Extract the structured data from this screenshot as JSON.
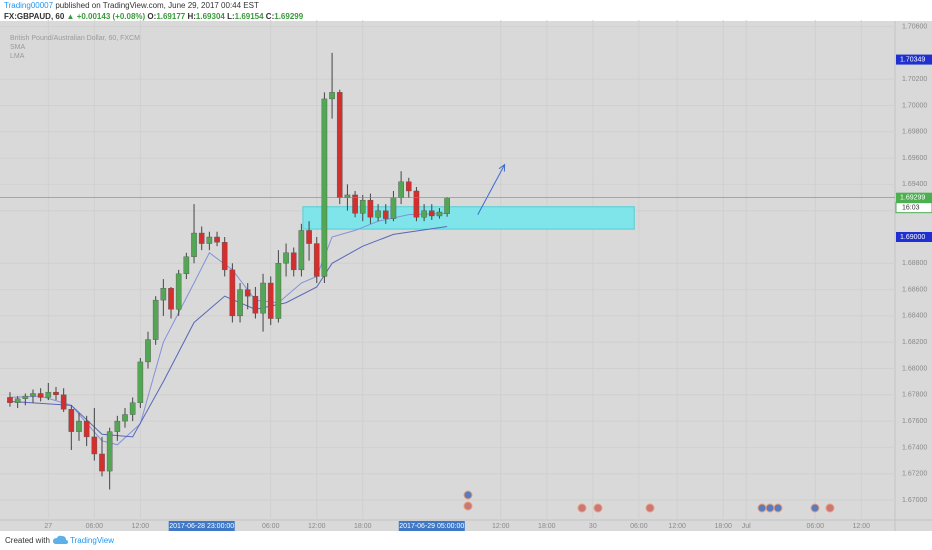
{
  "header": {
    "author": "Trading00007",
    "published": "published on TradingView.com, June 29, 2017 00:44 EST",
    "symbol": "FX:GBPAUD, 60",
    "change": "▲ +0.00143 (+0.08%)",
    "ohlc": [
      {
        "label": "O:",
        "value": "1.69177"
      },
      {
        "label": "H:",
        "value": "1.69304"
      },
      {
        "label": "L:",
        "value": "1.69154"
      },
      {
        "label": "C:",
        "value": "1.69299"
      }
    ]
  },
  "footer": {
    "created": "Created with",
    "brand": "TradingView"
  },
  "chart_data": {
    "type": "candlestick",
    "legend_title": "British Pound/Australian Dollar, 60, FXCM",
    "up_color": "#53a653",
    "down_color": "#d32f2f",
    "grid": true,
    "xlim": [
      -1.3,
      115.4
    ],
    "ylim": [
      1.66848,
      1.7065
    ],
    "x": [
      0,
      1,
      2,
      3,
      4,
      5,
      6,
      7,
      8,
      9,
      10,
      11,
      12,
      13,
      14,
      15,
      16,
      17,
      18,
      19,
      20,
      21,
      22,
      23,
      24,
      25,
      26,
      27,
      28,
      29,
      30,
      31,
      32,
      33,
      34,
      35,
      36,
      37,
      38,
      39,
      40,
      41,
      42,
      43,
      44,
      45,
      46,
      47,
      48,
      49,
      50,
      51,
      52,
      53,
      54,
      55,
      56,
      57
    ],
    "open": [
      1.6778,
      1.6774,
      1.6777,
      1.6779,
      1.6781,
      1.6778,
      1.6782,
      1.678,
      1.6769,
      1.6752,
      1.676,
      1.6748,
      1.6735,
      1.6722,
      1.6752,
      1.676,
      1.6765,
      1.6774,
      1.6805,
      1.6822,
      1.6852,
      1.6861,
      1.6845,
      1.6872,
      1.6885,
      1.6903,
      1.6895,
      1.69,
      1.6896,
      1.6875,
      1.684,
      1.686,
      1.6855,
      1.6842,
      1.6865,
      1.6838,
      1.688,
      1.6888,
      1.6875,
      1.6905,
      1.6895,
      1.687,
      1.7005,
      1.701,
      1.693,
      1.6932,
      1.6918,
      1.6928,
      1.6915,
      1.692,
      1.6914,
      1.693,
      1.6942,
      1.6935,
      1.6915,
      1.692,
      1.6916,
      1.69177
    ],
    "high": [
      1.6782,
      1.6779,
      1.6781,
      1.6784,
      1.6785,
      1.6789,
      1.6786,
      1.6785,
      1.6772,
      1.6766,
      1.6764,
      1.677,
      1.6748,
      1.6755,
      1.6764,
      1.677,
      1.6778,
      1.6808,
      1.6828,
      1.6855,
      1.6868,
      1.6862,
      1.6875,
      1.6888,
      1.6925,
      1.6908,
      1.6904,
      1.6904,
      1.69,
      1.688,
      1.6865,
      1.6865,
      1.6862,
      1.6872,
      1.687,
      1.689,
      1.6895,
      1.6892,
      1.691,
      1.6912,
      1.69,
      1.701,
      1.704,
      1.7012,
      1.694,
      1.6935,
      1.6932,
      1.6933,
      1.6925,
      1.6925,
      1.6935,
      1.695,
      1.6945,
      1.6938,
      1.6925,
      1.6925,
      1.6922,
      1.69304
    ],
    "low": [
      1.6771,
      1.677,
      1.6772,
      1.6774,
      1.6775,
      1.6776,
      1.6776,
      1.6767,
      1.6738,
      1.6745,
      1.6741,
      1.673,
      1.6718,
      1.6708,
      1.6745,
      1.6755,
      1.676,
      1.677,
      1.68,
      1.6818,
      1.684,
      1.6838,
      1.684,
      1.6868,
      1.688,
      1.689,
      1.689,
      1.6893,
      1.687,
      1.6835,
      1.6835,
      1.6845,
      1.6838,
      1.6828,
      1.6833,
      1.6835,
      1.687,
      1.687,
      1.687,
      1.6882,
      1.6865,
      1.6865,
      1.699,
      1.6925,
      1.692,
      1.6915,
      1.6912,
      1.691,
      1.6912,
      1.691,
      1.6912,
      1.6925,
      1.693,
      1.6912,
      1.6912,
      1.6913,
      1.6914,
      1.69154
    ],
    "close": [
      1.6774,
      1.6777,
      1.6779,
      1.6781,
      1.6778,
      1.6782,
      1.678,
      1.6769,
      1.6752,
      1.676,
      1.6748,
      1.6735,
      1.6722,
      1.6752,
      1.676,
      1.6765,
      1.6774,
      1.6805,
      1.6822,
      1.6852,
      1.6861,
      1.6845,
      1.6872,
      1.6885,
      1.6903,
      1.6895,
      1.69,
      1.6896,
      1.6875,
      1.684,
      1.686,
      1.6855,
      1.6842,
      1.6865,
      1.6838,
      1.688,
      1.6888,
      1.6875,
      1.6905,
      1.6895,
      1.687,
      1.7005,
      1.701,
      1.693,
      1.6932,
      1.6918,
      1.6928,
      1.6915,
      1.692,
      1.6914,
      1.693,
      1.6942,
      1.6935,
      1.6915,
      1.692,
      1.6916,
      1.6919,
      1.69299
    ],
    "series": [
      {
        "name": "SMA",
        "color": "#8391d8",
        "x": [
          0,
          4,
          8,
          12,
          14,
          17,
          20,
          24,
          26,
          29,
          32,
          35,
          38,
          40,
          42,
          45,
          48,
          52,
          57
        ],
        "values": [
          1.6778,
          1.6779,
          1.6772,
          1.6745,
          1.6742,
          1.6758,
          1.682,
          1.6865,
          1.6888,
          1.6875,
          1.6852,
          1.685,
          1.6865,
          1.687,
          1.69,
          1.6905,
          1.6912,
          1.6917,
          1.6918
        ]
      },
      {
        "name": "LMA",
        "color": "#5868b8",
        "x": [
          0,
          8,
          12,
          16,
          20,
          24,
          28,
          32,
          36,
          40,
          42,
          46,
          50,
          57
        ],
        "values": [
          1.6775,
          1.6772,
          1.675,
          1.6748,
          1.679,
          1.6835,
          1.6855,
          1.6845,
          1.685,
          1.6862,
          1.688,
          1.6893,
          1.6902,
          1.6908
        ]
      }
    ],
    "zone": {
      "x": [
        38.2,
        81.4
      ],
      "y": [
        1.6906,
        1.6923
      ],
      "color": "#7fe5ea"
    },
    "arrow": {
      "x": [
        61,
        64.5
      ],
      "y": [
        1.6917,
        1.6955
      ],
      "color": "#3d6bd1"
    },
    "yticks": [
      {
        "value": 1.67,
        "label": "1.67000"
      },
      {
        "value": 1.672,
        "label": "1.67200"
      },
      {
        "value": 1.674,
        "label": "1.67400"
      },
      {
        "value": 1.676,
        "label": "1.67600"
      },
      {
        "value": 1.678,
        "label": "1.67800"
      },
      {
        "value": 1.68,
        "label": "1.68000"
      },
      {
        "value": 1.682,
        "label": "1.68200"
      },
      {
        "value": 1.684,
        "label": "1.68400"
      },
      {
        "value": 1.686,
        "label": "1.68600"
      },
      {
        "value": 1.688,
        "label": "1.68800"
      },
      {
        "value": 1.692,
        "label": "1.69200"
      },
      {
        "value": 1.694,
        "label": "1.69400"
      },
      {
        "value": 1.696,
        "label": "1.69600"
      },
      {
        "value": 1.698,
        "label": "1.69800"
      },
      {
        "value": 1.7,
        "label": "1.70000"
      },
      {
        "value": 1.702,
        "label": "1.70200"
      },
      {
        "value": 1.706,
        "label": "1.70600"
      }
    ],
    "xticks": [
      {
        "value": 5,
        "label": "27"
      },
      {
        "value": 11,
        "label": "06:00"
      },
      {
        "value": 17,
        "label": "12:00"
      },
      {
        "value": 34,
        "label": "06:00"
      },
      {
        "value": 40,
        "label": "12:00"
      },
      {
        "value": 46,
        "label": "18:00"
      },
      {
        "value": 64,
        "label": "12:00"
      },
      {
        "value": 70,
        "label": "18:00"
      },
      {
        "value": 76,
        "label": "30"
      },
      {
        "value": 82,
        "label": "06:00"
      },
      {
        "value": 87,
        "label": "12:00"
      },
      {
        "value": 93,
        "label": "18:00"
      },
      {
        "value": 96,
        "label": "Jul"
      },
      {
        "value": 105,
        "label": "06:00"
      },
      {
        "value": 111,
        "label": "12:00"
      }
    ],
    "x_markers": [
      {
        "value": 25,
        "label": "2017-06-28 23:00:00"
      },
      {
        "value": 55,
        "label": "2017-06-29 05:00:00"
      }
    ],
    "price_markers": [
      {
        "value": 1.70349,
        "label": "1.70349",
        "color": "#1f2fd0"
      },
      {
        "value": 1.69299,
        "label": "1.69299",
        "color": "#4caf50",
        "countdown": "16:03",
        "line": true
      },
      {
        "value": 1.69,
        "label": "1.69000",
        "color": "#1f2fd0"
      }
    ]
  }
}
